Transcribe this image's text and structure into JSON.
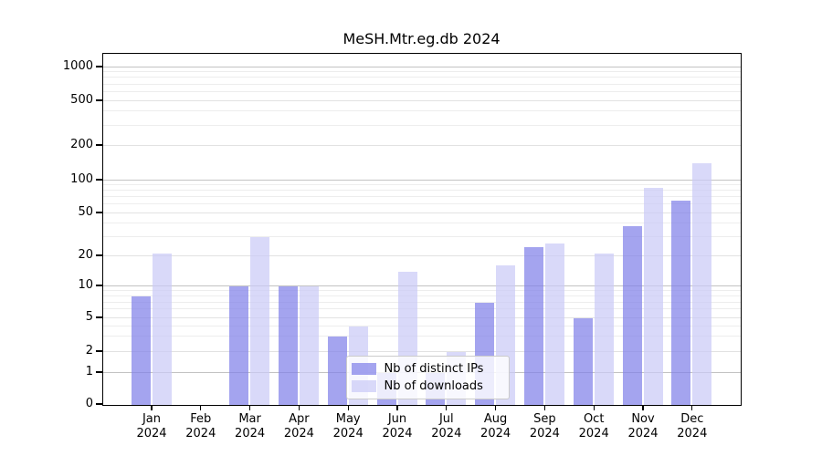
{
  "title": "MeSH.Mtr.eg.db 2024",
  "chart_data": {
    "type": "bar",
    "title": "MeSH.Mtr.eg.db 2024",
    "categories": [
      "Jan 2024",
      "Feb 2024",
      "Mar 2024",
      "Apr 2024",
      "May 2024",
      "Jun 2024",
      "Jul 2024",
      "Aug 2024",
      "Sep 2024",
      "Oct 2024",
      "Nov 2024",
      "Dec 2024"
    ],
    "series": [
      {
        "name": "Nb of distinct IPs",
        "color": "#8181e9",
        "values": [
          8,
          0,
          10,
          10,
          3,
          1,
          1,
          7,
          24,
          5,
          38,
          65
        ]
      },
      {
        "name": "Nb of downloads",
        "color": "#cacaf6",
        "values": [
          21,
          0,
          30,
          10,
          4,
          14,
          2,
          16,
          26,
          21,
          85,
          140
        ]
      }
    ],
    "xlabel": "",
    "ylabel": "",
    "yscale": "log-like",
    "ylim": [
      0,
      1000
    ],
    "yticks": [
      0,
      1,
      2,
      5,
      10,
      20,
      50,
      100,
      200,
      500,
      1000
    ],
    "grid": "on",
    "legend_position": "lower-center"
  },
  "colors": {
    "major_grid": "#c3c3c3",
    "labeled_minor_grid": "#e2e2e2",
    "minor_grid": "#ededed",
    "axis": "#000000",
    "legend_border": "#cbcbcb",
    "background": "#ffffff"
  }
}
